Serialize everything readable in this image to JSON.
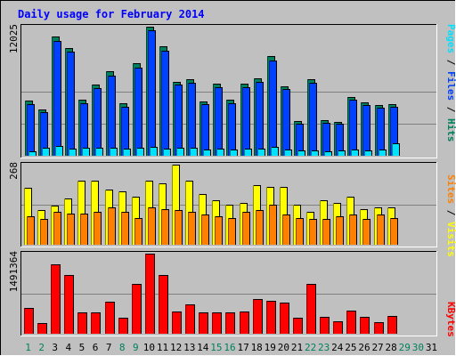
{
  "chart_data": {
    "type": "bar",
    "title": "Daily usage for February 2014",
    "days": [
      "1",
      "2",
      "3",
      "4",
      "5",
      "6",
      "7",
      "8",
      "9",
      "10",
      "11",
      "12",
      "13",
      "14",
      "15",
      "16",
      "17",
      "18",
      "19",
      "20",
      "21",
      "22",
      "23",
      "24",
      "25",
      "26",
      "27",
      "28",
      "29",
      "30",
      "31"
    ],
    "weekend_days": [
      "1",
      "2",
      "8",
      "9",
      "15",
      "16",
      "22",
      "23",
      "29",
      "30"
    ],
    "panels": [
      {
        "id": "hits-files-pages",
        "max_label": "12025",
        "ymax": 12025,
        "series": [
          {
            "name": "Hits",
            "color": "#00805c",
            "values": [
              5150,
              4350,
              11100,
              10000,
              5200,
              6600,
              7900,
              4900,
              8600,
              12025,
              10200,
              6900,
              7100,
              5100,
              6700,
              5200,
              6700,
              7200,
              9300,
              6500,
              3200,
              7100,
              3300,
              3150,
              5450,
              4950,
              4700,
              4800,
              null,
              null,
              null
            ]
          },
          {
            "name": "Files",
            "color": "#0040ff",
            "values": [
              4800,
              4050,
              10700,
              9700,
              4900,
              6300,
              7500,
              4600,
              8250,
              11700,
              9800,
              6600,
              6800,
              4800,
              6400,
              4900,
              6400,
              6900,
              8900,
              6200,
              3000,
              6800,
              3100,
              3000,
              5200,
              4700,
              4450,
              4550,
              null,
              null,
              null
            ]
          },
          {
            "name": "Pages",
            "color": "#00e0ff",
            "values": [
              300,
              660,
              800,
              620,
              650,
              660,
              650,
              600,
              640,
              710,
              570,
              680,
              690,
              500,
              610,
              530,
              600,
              560,
              780,
              470,
              400,
              440,
              370,
              420,
              460,
              410,
              520,
              1050,
              null,
              null,
              null
            ]
          }
        ]
      },
      {
        "id": "visits-sites",
        "max_label": "268",
        "ymax": 268,
        "series": [
          {
            "name": "Visits",
            "color": "#ffff00",
            "values": [
              190,
              115,
              130,
              155,
              215,
              215,
              185,
              180,
              160,
              215,
              205,
              268,
              215,
              170,
              150,
              135,
              140,
              200,
              195,
              195,
              135,
              110,
              150,
              140,
              160,
              120,
              125,
              125,
              null,
              null,
              null
            ]
          },
          {
            "name": "Sites",
            "color": "#ff8000",
            "values": [
              95,
              85,
              110,
              105,
              105,
              110,
              125,
              110,
              90,
              125,
              120,
              115,
              110,
              100,
              95,
              90,
              110,
              115,
              135,
              100,
              90,
              85,
              85,
              95,
              100,
              85,
              100,
              90,
              null,
              null,
              null
            ]
          }
        ]
      },
      {
        "id": "kbytes",
        "max_label": "1491364",
        "ymax": 1491364,
        "series": [
          {
            "name": "KBytes",
            "color": "#ff0000",
            "values": [
              480000,
              200000,
              1300000,
              1100000,
              400000,
              400000,
              600000,
              290000,
              930000,
              1491364,
              1100000,
              420000,
              550000,
              390000,
              400000,
              400000,
              420000,
              650000,
              620000,
              580000,
              300000,
              920000,
              310000,
              240000,
              430000,
              320000,
              210000,
              330000,
              null,
              null,
              null
            ]
          }
        ]
      }
    ],
    "grid": true,
    "legend": "right"
  }
}
